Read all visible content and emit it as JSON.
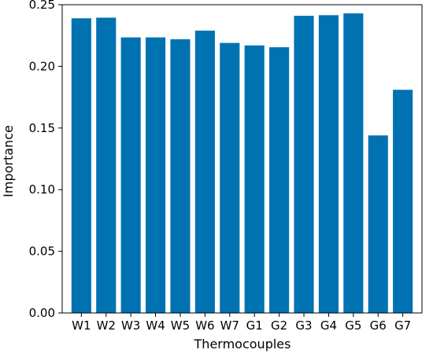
{
  "chart_data": {
    "type": "bar",
    "title": "",
    "xlabel": "Thermocouples",
    "ylabel": "Importance",
    "categories": [
      "W1",
      "W2",
      "W3",
      "W4",
      "W5",
      "W6",
      "W7",
      "G1",
      "G2",
      "G3",
      "G4",
      "G5",
      "G6",
      "G7"
    ],
    "values": [
      0.239,
      0.2395,
      0.2235,
      0.2235,
      0.222,
      0.229,
      0.219,
      0.217,
      0.2155,
      0.241,
      0.2415,
      0.243,
      0.144,
      0.181
    ],
    "ylim": [
      0,
      0.25
    ],
    "yticks": [
      "0.00",
      "0.05",
      "0.10",
      "0.15",
      "0.20",
      "0.25"
    ],
    "bar_color": "#0072b2",
    "grid": false,
    "legend": "none"
  }
}
